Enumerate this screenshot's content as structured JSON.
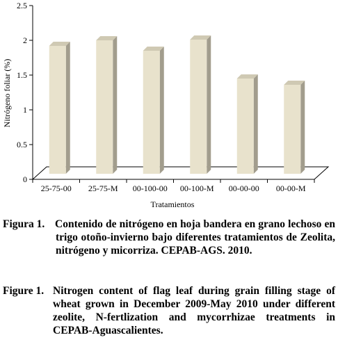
{
  "chart_data": {
    "type": "bar",
    "categories": [
      "25-75-00",
      "25-75-M",
      "00-100-00",
      "00-100-M",
      "00-00-00",
      "00-00-M"
    ],
    "values": [
      2.0,
      2.08,
      1.93,
      2.09,
      1.53,
      1.44
    ],
    "title": "",
    "xlabel": "Tratamientos",
    "ylabel": "Nitrógeno foliar (%)",
    "ylim": [
      0,
      2.5
    ],
    "yticks": [
      "0",
      "0.5",
      "1",
      "1.5",
      "2",
      "2.5"
    ],
    "grid": false,
    "legend": "none",
    "style": "3d",
    "colors": {
      "bar_front": "#e8e2cc",
      "bar_side": "#a29d8d",
      "bar_top": "#cfc9b3",
      "floor": "#ffffff",
      "axis": "#000000"
    }
  },
  "captions": {
    "spanish": {
      "label": "Figura 1.",
      "text": "Contenido de nitrógeno en hoja bandera en grano lechoso en trigo otoño-invierno bajo diferentes tratamientos de Zeolita, nitrógeno y micorriza. CEPAB-AGS. 2010."
    },
    "english": {
      "label": "Figure 1.",
      "text": "Nitrogen content of flag leaf during grain filling stage of wheat grown in December 2009-May 2010 under different zeolite, N-fertlization and mycorrhizae treatments in CEPAB-Aguascalientes."
    }
  }
}
